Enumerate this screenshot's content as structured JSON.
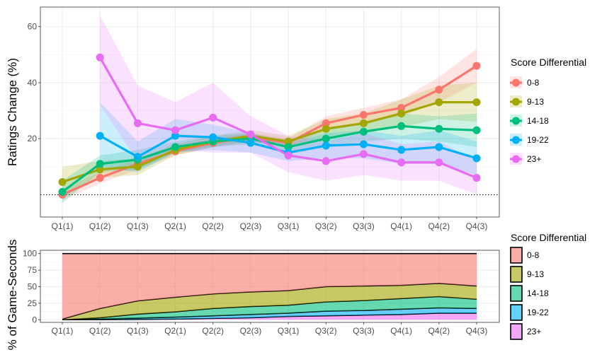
{
  "chart_data": [
    {
      "type": "line",
      "ylabel": "Ratings Change (%)",
      "xlabel": "",
      "categories": [
        "Q1(1)",
        "Q1(2)",
        "Q1(3)",
        "Q2(1)",
        "Q2(2)",
        "Q2(3)",
        "Q3(1)",
        "Q3(2)",
        "Q3(3)",
        "Q4(1)",
        "Q4(2)",
        "Q4(3)"
      ],
      "yticks": [
        20,
        40,
        60
      ],
      "ylim": [
        -8,
        67
      ],
      "reference_line": 0,
      "grid": true,
      "legend_title": "Score Differential",
      "legend_position": "right",
      "series": [
        {
          "name": "0-8",
          "color": "#F8766D",
          "values": [
            0,
            6,
            11,
            15.5,
            18.5,
            20.5,
            18.5,
            25.5,
            28.5,
            31,
            37.5,
            46
          ],
          "lower": [
            -2,
            4,
            9,
            14,
            17,
            19,
            17,
            23,
            26,
            28,
            33,
            40
          ],
          "upper": [
            2,
            8,
            13,
            17,
            20,
            22,
            20,
            28,
            31,
            34,
            42,
            52
          ]
        },
        {
          "name": "9-13",
          "color": "#A3A500",
          "values": [
            4.5,
            9,
            10,
            16,
            19,
            21,
            19,
            23.5,
            25.5,
            29,
            33,
            33
          ],
          "lower": [
            -1,
            6,
            7,
            14,
            17,
            19,
            17,
            20,
            22,
            24,
            27,
            26
          ],
          "upper": [
            10,
            12,
            13,
            18,
            21,
            23,
            21,
            27,
            29,
            34,
            39,
            40
          ]
        },
        {
          "name": "14-18",
          "color": "#00BF7D",
          "values": [
            1,
            11,
            12.5,
            17,
            19,
            20,
            17,
            20,
            22.5,
            24.5,
            23.5,
            23
          ],
          "lower": [
            -3,
            8,
            9,
            15,
            17,
            18,
            15,
            17,
            19,
            20,
            19,
            17
          ],
          "upper": [
            5,
            14,
            16,
            19,
            21,
            22,
            19,
            23,
            26,
            29,
            28,
            29
          ]
        },
        {
          "name": "19-22",
          "color": "#00B0F6",
          "values": [
            null,
            21,
            13.5,
            21,
            20.5,
            18.5,
            15,
            17.5,
            18,
            16,
            17,
            13
          ],
          "lower": [
            null,
            10,
            8,
            15,
            16,
            15,
            12,
            13,
            13,
            11,
            11,
            7
          ],
          "upper": [
            null,
            33,
            19,
            27,
            25,
            22,
            18,
            22,
            23,
            21,
            23,
            19
          ]
        },
        {
          "name": "23+",
          "color": "#E76BF3",
          "values": [
            null,
            49,
            25.5,
            23,
            27.5,
            21.5,
            14,
            12,
            14.5,
            11.5,
            11.5,
            6
          ],
          "lower": [
            null,
            32,
            12,
            16,
            15,
            15,
            8,
            5,
            7,
            5,
            5,
            0
          ],
          "upper": [
            null,
            64,
            39,
            33,
            40,
            28,
            21,
            19,
            22,
            18,
            19,
            12
          ]
        }
      ]
    },
    {
      "type": "area",
      "stacked": true,
      "ylabel": "% of Game-Seconds",
      "xlabel": "",
      "categories": [
        "Q1(1)",
        "Q1(2)",
        "Q1(3)",
        "Q2(1)",
        "Q2(2)",
        "Q2(3)",
        "Q3(1)",
        "Q3(2)",
        "Q3(3)",
        "Q4(1)",
        "Q4(2)",
        "Q4(3)"
      ],
      "yticks": [
        0,
        25,
        50,
        75,
        100
      ],
      "ylim": [
        -4,
        105
      ],
      "grid": true,
      "legend_title": "Score Differential",
      "legend_position": "right",
      "series": [
        {
          "name": "23+",
          "color": "#E76BF3",
          "values": [
            0,
            0,
            0.5,
            1,
            2,
            3,
            5,
            6,
            7,
            8,
            10,
            10
          ]
        },
        {
          "name": "19-22",
          "color": "#00B0F6",
          "values": [
            0,
            1,
            2,
            3,
            4,
            5,
            5,
            7,
            7,
            8,
            8,
            7
          ]
        },
        {
          "name": "14-18",
          "color": "#00BF7D",
          "values": [
            0,
            2,
            6,
            8,
            11,
            12,
            12,
            14,
            15,
            16,
            17,
            14
          ]
        },
        {
          "name": "9-13",
          "color": "#A3A500",
          "values": [
            1,
            14,
            20,
            22,
            22,
            22,
            22,
            23,
            22,
            20,
            20,
            20
          ]
        },
        {
          "name": "0-8",
          "color": "#F8766D",
          "values": [
            99,
            83,
            71.5,
            66,
            61,
            58,
            56,
            50,
            49,
            48,
            45,
            49
          ]
        }
      ]
    }
  ]
}
